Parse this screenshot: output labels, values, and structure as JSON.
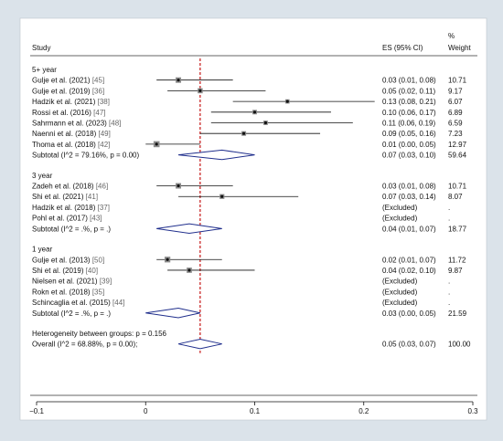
{
  "chart_data": {
    "type": "forest",
    "headers": {
      "study": "Study",
      "es": "ES (95% CI)",
      "weight_pct": "%",
      "weight": "Weight"
    },
    "x_ticks": [
      -0.1,
      0,
      0.1,
      0.2,
      0.3
    ],
    "x_tick_labels": [
      "−0.1",
      "0",
      "0.1",
      "0.2",
      "0.3"
    ],
    "xlim": [
      -0.1,
      0.3
    ],
    "overall_line": 0.05,
    "groups": [
      {
        "label": "5+ year",
        "studies": [
          {
            "name": "Gulje et al. (2021)",
            "ref": "[45]",
            "es": 0.03,
            "lo": 0.01,
            "hi": 0.08,
            "es_text": "0.03 (0.01, 0.08)",
            "weight": "10.71"
          },
          {
            "name": "Gulje et al. (2019)",
            "ref": "[36]",
            "es": 0.05,
            "lo": 0.02,
            "hi": 0.11,
            "es_text": "0.05 (0.02, 0.11)",
            "weight": "9.17"
          },
          {
            "name": "Hadzik et al. (2021)",
            "ref": "[38]",
            "es": 0.13,
            "lo": 0.08,
            "hi": 0.21,
            "es_text": "0.13 (0.08, 0.21)",
            "weight": "6.07"
          },
          {
            "name": "Rossi et al. (2016)",
            "ref": "[47]",
            "es": 0.1,
            "lo": 0.06,
            "hi": 0.17,
            "es_text": "0.10 (0.06, 0.17)",
            "weight": "6.89"
          },
          {
            "name": "Sahrmann et al. (2023)",
            "ref": "[48]",
            "es": 0.11,
            "lo": 0.06,
            "hi": 0.19,
            "es_text": "0.11 (0.06, 0.19)",
            "weight": "6.59"
          },
          {
            "name": "Naenni et al. (2018)",
            "ref": "[49]",
            "es": 0.09,
            "lo": 0.05,
            "hi": 0.16,
            "es_text": "0.09 (0.05, 0.16)",
            "weight": "7.23"
          },
          {
            "name": "Thoma et al. (2018)",
            "ref": "[42]",
            "es": 0.01,
            "lo": 0.0,
            "hi": 0.05,
            "es_text": "0.01 (0.00, 0.05)",
            "weight": "12.97"
          }
        ],
        "subtotal": {
          "label": "Subtotal  (I^2 = 79.16%, p = 0.00)",
          "es": 0.07,
          "lo": 0.03,
          "hi": 0.1,
          "es_text": "0.07 (0.03, 0.10)",
          "weight": "59.64"
        }
      },
      {
        "label": "3 year",
        "studies": [
          {
            "name": "Zadeh et al. (2018)",
            "ref": "[46]",
            "es": 0.03,
            "lo": 0.01,
            "hi": 0.08,
            "es_text": "0.03 (0.01, 0.08)",
            "weight": "10.71"
          },
          {
            "name": "Shi et al. (2021)",
            "ref": "[41]",
            "es": 0.07,
            "lo": 0.03,
            "hi": 0.14,
            "es_text": "0.07 (0.03, 0.14)",
            "weight": "8.07"
          },
          {
            "name": "Hadzik et al. (2018)",
            "ref": "[37]",
            "es": null,
            "es_text": "(Excluded)",
            "weight": "."
          },
          {
            "name": "Pohl et al. (2017)",
            "ref": "[43]",
            "es": null,
            "es_text": "(Excluded)",
            "weight": "."
          }
        ],
        "subtotal": {
          "label": "Subtotal  (I^2 = .%, p = .)",
          "es": 0.04,
          "lo": 0.01,
          "hi": 0.07,
          "es_text": "0.04 (0.01, 0.07)",
          "weight": "18.77"
        }
      },
      {
        "label": "1 year",
        "studies": [
          {
            "name": "Gulje et al. (2013)",
            "ref": "[50]",
            "es": 0.02,
            "lo": 0.01,
            "hi": 0.07,
            "es_text": "0.02 (0.01, 0.07)",
            "weight": "11.72"
          },
          {
            "name": "Shi et al. (2019)",
            "ref": "[40]",
            "es": 0.04,
            "lo": 0.02,
            "hi": 0.1,
            "es_text": "0.04 (0.02, 0.10)",
            "weight": "9.87"
          },
          {
            "name": "Nielsen et al. (2021)",
            "ref": "[39]",
            "es": null,
            "es_text": "(Excluded)",
            "weight": "."
          },
          {
            "name": "Rokn et al. (2018)",
            "ref": "[35]",
            "es": null,
            "es_text": "(Excluded)",
            "weight": "."
          },
          {
            "name": "Schincaglia et al. (2015)",
            "ref": "[44]",
            "es": null,
            "es_text": "(Excluded)",
            "weight": "."
          }
        ],
        "subtotal": {
          "label": "Subtotal  (I^2 = .%, p = .)",
          "es": 0.03,
          "lo": 0.0,
          "hi": 0.05,
          "es_text": "0.03 (0.00, 0.05)",
          "weight": "21.59"
        }
      }
    ],
    "heterogeneity": "Heterogeneity between groups: p = 0.156",
    "overall": {
      "label": "Overall  (I^2 = 68.88%, p = 0.00);",
      "es": 0.05,
      "lo": 0.03,
      "hi": 0.07,
      "es_text": "0.05 (0.03, 0.07)",
      "weight": "100.00"
    },
    "colors": {
      "background": "#dbe3ea",
      "plot_bg": "#ffffff",
      "diamond": "#1f2e8c",
      "overall_line": "#c00000",
      "marker_fill": "#8c8c8c"
    }
  }
}
